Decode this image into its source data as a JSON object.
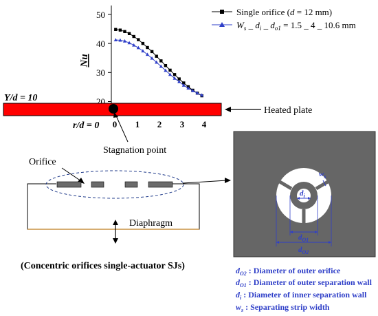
{
  "chart_data": {
    "type": "line",
    "ylabel": "Nu",
    "yticks": [
      "20",
      "30",
      "40",
      "50"
    ],
    "xticks": [
      "0",
      "1",
      "2",
      "3",
      "4"
    ],
    "ylim": [
      20,
      55
    ],
    "xlim": [
      0,
      4
    ],
    "series": [
      {
        "name": "Single orifice (d = 12 mm)",
        "name_parts": [
          "Single orifice (",
          "d",
          " = 12 mm)"
        ],
        "color": "#000000",
        "marker": "square",
        "x": [
          0.1,
          0.3,
          0.5,
          0.7,
          0.9,
          1.1,
          1.3,
          1.5,
          1.7,
          1.9,
          2.1,
          2.3,
          2.5,
          2.7,
          2.9,
          3.1,
          3.3,
          3.5,
          3.7,
          3.9
        ],
        "y": [
          44.8,
          44.6,
          44.1,
          43.4,
          42.4,
          41.3,
          40.0,
          38.6,
          37.2,
          35.6,
          34.0,
          32.4,
          30.8,
          29.3,
          27.8,
          26.4,
          25.1,
          23.9,
          22.9,
          22.0
        ]
      },
      {
        "name": "Ws _ di _ do1 = 1.5 _ 4 _ 10.6 mm",
        "color": "#2f3fc8",
        "marker": "triangle",
        "x": [
          0.1,
          0.3,
          0.5,
          0.7,
          0.9,
          1.1,
          1.3,
          1.5,
          1.7,
          1.9,
          2.1,
          2.3,
          2.5,
          2.7,
          2.9,
          3.1,
          3.3,
          3.5,
          3.7,
          3.9
        ],
        "y": [
          41.2,
          41.1,
          40.8,
          40.2,
          39.4,
          38.5,
          37.4,
          36.2,
          34.9,
          33.5,
          32.1,
          30.7,
          29.3,
          28.0,
          26.8,
          25.6,
          24.6,
          23.7,
          22.9,
          22.2
        ]
      }
    ]
  },
  "legend_formula_parts": {
    "W": "W",
    "s": "s",
    "sep1": " _ ",
    "d": "d",
    "i": "i",
    "sep2": " _ ",
    "d2": "d",
    "o1": "o1",
    "rest": " = 1.5 _ 4 _ 10.6 mm"
  },
  "labels": {
    "y_over_d": "Y/d = 10",
    "r_over_d": "r/d = 0",
    "heated_plate": "Heated plate",
    "stagnation_point": "Stagnation point",
    "orifice": "Orifice",
    "diaphragm": "Diaphragm",
    "caption": "(Concentric orifices single-actuator SJs)",
    "ws": "w",
    "ws_sub": "s",
    "di": "d",
    "di_sub": "i",
    "do1": "d",
    "do1_sub": "O1",
    "do2": "d",
    "do2_sub": "O2"
  },
  "definitions": [
    {
      "sym": "d",
      "sub": "O2",
      "text": " : Diameter of outer orifice"
    },
    {
      "sym": "d",
      "sub": "O1",
      "text": " : Diameter of outer separation wall"
    },
    {
      "sym": "d",
      "sub": "i",
      "text": " : Diameter of inner separation wall"
    },
    {
      "sym": "w",
      "sub": "s",
      "text": " : Separating strip width"
    }
  ],
  "colors": {
    "plate": "#ff0000",
    "panel": "#666666",
    "blue": "#2f3fc8",
    "actuator_line": "#c89040"
  }
}
